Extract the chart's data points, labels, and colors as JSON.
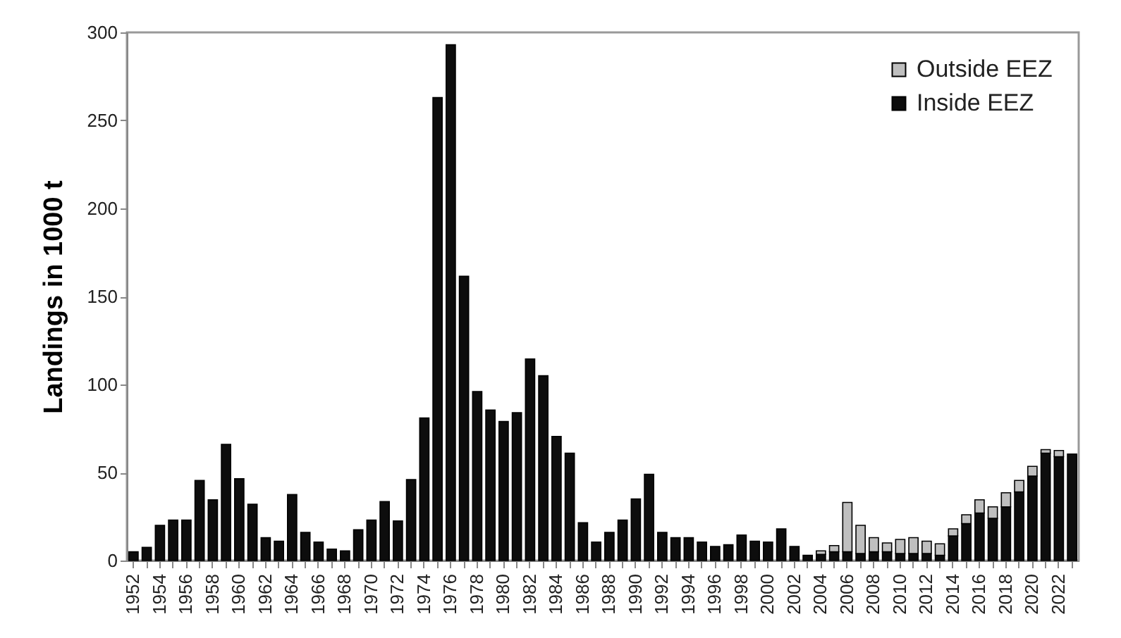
{
  "chart_data": {
    "type": "bar",
    "stacked": true,
    "ylabel": "Landings in 1000 t",
    "categories": [
      "1952",
      null,
      "1954",
      null,
      "1956",
      null,
      "1958",
      null,
      "1960",
      null,
      "1962",
      null,
      "1964",
      null,
      "1966",
      null,
      "1968",
      null,
      "1970",
      null,
      "1972",
      null,
      "1974",
      null,
      "1976",
      null,
      "1978",
      null,
      "1980",
      null,
      "1982",
      null,
      "1984",
      null,
      "1986",
      null,
      "1988",
      null,
      "1990",
      null,
      "1992",
      null,
      "1994",
      null,
      "1996",
      null,
      "1998",
      null,
      "2000",
      null,
      "2002",
      null,
      "2004",
      null,
      "2006",
      null,
      "2008",
      null,
      "2010",
      null,
      "2012",
      null,
      "2014",
      null,
      "2016",
      null,
      "2018",
      null,
      "2020",
      null,
      "2022",
      null
    ],
    "series": [
      {
        "name": "Inside EEZ",
        "color": "#0d0d0d",
        "values": [
          5,
          7.5,
          20,
          23,
          23,
          45.5,
          34.5,
          66,
          46.5,
          32,
          13,
          11,
          37.5,
          16,
          10.5,
          6.5,
          5.5,
          17.5,
          23,
          33.5,
          22.5,
          46,
          81,
          263,
          293,
          161.5,
          96,
          85.5,
          79,
          84,
          114.5,
          105,
          70.5,
          61,
          21.5,
          10.5,
          16,
          23,
          35,
          49,
          16,
          13,
          13,
          10.5,
          8,
          9,
          14.5,
          11,
          10.5,
          18,
          8,
          3,
          3.5,
          5,
          5,
          4,
          5,
          5,
          4,
          4,
          4,
          3,
          14,
          21,
          27,
          24,
          30.5,
          39,
          48,
          61,
          59,
          60.5
        ]
      },
      {
        "name": "Outside EEZ",
        "color": "#bfbfbf",
        "values": [
          null,
          null,
          null,
          null,
          null,
          null,
          null,
          null,
          null,
          null,
          null,
          null,
          null,
          null,
          null,
          null,
          null,
          null,
          null,
          null,
          null,
          null,
          null,
          null,
          null,
          null,
          null,
          null,
          null,
          null,
          null,
          null,
          null,
          null,
          null,
          null,
          null,
          null,
          null,
          null,
          null,
          null,
          null,
          null,
          null,
          null,
          null,
          null,
          null,
          null,
          null,
          null,
          2,
          3.5,
          28,
          16,
          8,
          5,
          8,
          9,
          7,
          6.5,
          4,
          5,
          7.5,
          6.5,
          8,
          6.5,
          5.5,
          2,
          3.5,
          null
        ]
      }
    ],
    "ylim": [
      0,
      300
    ],
    "yticks": [
      0,
      50,
      100,
      150,
      200,
      250,
      300
    ],
    "legend": "top right"
  }
}
